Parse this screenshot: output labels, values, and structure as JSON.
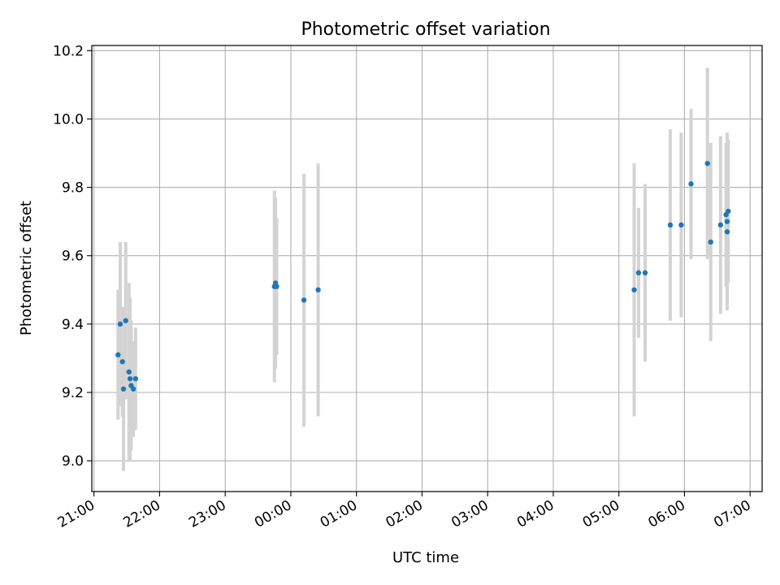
{
  "chart_data": {
    "type": "scatter",
    "title": "Photometric offset variation",
    "xlabel": "UTC time",
    "ylabel": "Photometric offset",
    "x_axis": {
      "kind": "time",
      "range": [
        "20:58",
        "07:11"
      ],
      "ticks": [
        {
          "time": "21:00",
          "label": "21:00"
        },
        {
          "time": "22:00",
          "label": "22:00"
        },
        {
          "time": "23:00",
          "label": "23:00"
        },
        {
          "time": "24:00",
          "label": "00:00"
        },
        {
          "time": "25:00",
          "label": "01:00"
        },
        {
          "time": "26:00",
          "label": "02:00"
        },
        {
          "time": "27:00",
          "label": "03:00"
        },
        {
          "time": "28:00",
          "label": "04:00"
        },
        {
          "time": "29:00",
          "label": "05:00"
        },
        {
          "time": "30:00",
          "label": "06:00"
        },
        {
          "time": "31:00",
          "label": "07:00"
        }
      ]
    },
    "y_axis": {
      "range": [
        8.91,
        10.215
      ],
      "ticks": [
        9.0,
        9.2,
        9.4,
        9.6,
        9.8,
        10.0,
        10.2
      ],
      "tick_labels": [
        "9.0",
        "9.2",
        "9.4",
        "9.6",
        "9.8",
        "10.0",
        "10.2"
      ]
    },
    "grid": true,
    "marker_color": "#1f77b4",
    "errorbar_color": "#d3d3d3",
    "points": [
      {
        "time": "21:22",
        "y": 9.31,
        "err": 0.19
      },
      {
        "time": "21:24",
        "y": 9.4,
        "err": 0.24
      },
      {
        "time": "21:26",
        "y": 9.29,
        "err": 0.16
      },
      {
        "time": "21:27",
        "y": 9.21,
        "err": 0.24
      },
      {
        "time": "21:29",
        "y": 9.41,
        "err": 0.23
      },
      {
        "time": "21:32",
        "y": 9.26,
        "err": 0.26
      },
      {
        "time": "21:33",
        "y": 9.24,
        "err": 0.24
      },
      {
        "time": "21:34",
        "y": 9.22,
        "err": 0.19
      },
      {
        "time": "21:36",
        "y": 9.21,
        "err": 0.14
      },
      {
        "time": "21:38",
        "y": 9.24,
        "err": 0.15
      },
      {
        "time": "23:45",
        "y": 9.51,
        "err": 0.28
      },
      {
        "time": "23:46",
        "y": 9.52,
        "err": 0.25
      },
      {
        "time": "23:47",
        "y": 9.51,
        "err": 0.2
      },
      {
        "time": "24:12",
        "y": 9.47,
        "err": 0.37
      },
      {
        "time": "24:25",
        "y": 9.5,
        "err": 0.37
      },
      {
        "time": "29:14",
        "y": 9.5,
        "err": 0.37
      },
      {
        "time": "29:18",
        "y": 9.55,
        "err": 0.19
      },
      {
        "time": "29:24",
        "y": 9.55,
        "err": 0.26
      },
      {
        "time": "29:47",
        "y": 9.69,
        "err": 0.28
      },
      {
        "time": "29:57",
        "y": 9.69,
        "err": 0.27
      },
      {
        "time": "30:06",
        "y": 9.81,
        "err": 0.22
      },
      {
        "time": "30:21",
        "y": 9.87,
        "err": 0.28
      },
      {
        "time": "30:24",
        "y": 9.64,
        "err": 0.29
      },
      {
        "time": "30:33",
        "y": 9.69,
        "err": 0.26
      },
      {
        "time": "30:38",
        "y": 9.72,
        "err": 0.21
      },
      {
        "time": "30:39",
        "y": 9.7,
        "err": 0.26
      },
      {
        "time": "30:39",
        "y": 9.67,
        "err": 0.21
      },
      {
        "time": "30:40",
        "y": 9.73,
        "err": 0.21
      }
    ]
  }
}
